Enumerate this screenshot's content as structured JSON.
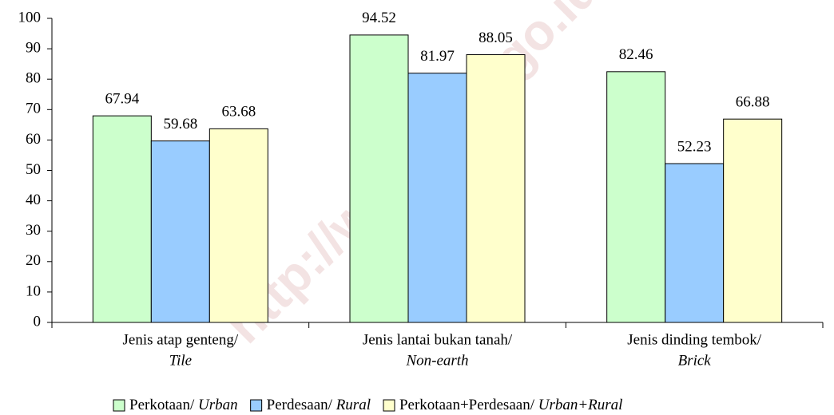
{
  "chart_data": {
    "type": "bar",
    "categories": [
      [
        "Jenis atap genteng/",
        "Tile"
      ],
      [
        "Jenis lantai bukan tanah/",
        "Non-earth"
      ],
      [
        "Jenis dinding tembok/",
        "Brick"
      ]
    ],
    "series": [
      {
        "name": "Perkotaan/ Urban",
        "color": "#ccffcc",
        "values": [
          67.94,
          94.52,
          82.46
        ]
      },
      {
        "name": "Perdesaan/ Rural",
        "color": "#99ccff",
        "values": [
          59.68,
          81.97,
          52.23
        ]
      },
      {
        "name": "Perkotaan+Perdesaan/ Urban+Rural",
        "color": "#ffffcc",
        "values": [
          63.68,
          88.05,
          66.88
        ]
      }
    ],
    "ylim": [
      0,
      100
    ],
    "yticks": [
      0,
      10,
      20,
      30,
      40,
      50,
      60,
      70,
      80,
      90,
      100
    ],
    "legend": "bottom",
    "watermark": "http://www.bps.go.id"
  }
}
